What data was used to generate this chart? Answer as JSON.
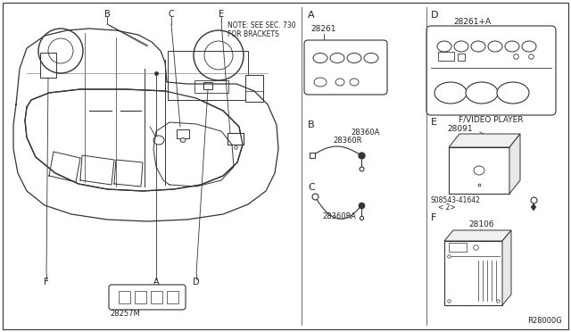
{
  "bg_color": "#ffffff",
  "line_color": "#333333",
  "text_color": "#222222",
  "fig_width": 6.4,
  "fig_height": 3.72,
  "dpi": 100,
  "part_labels": {
    "28261": "28261",
    "28261pA": "28261+A",
    "28360A": "28360A",
    "28360R": "28360R",
    "28360RA": "28360RA",
    "28257M": "28257M",
    "28091": "28091",
    "08543": "S08543-41642",
    "08543b": "< 2>",
    "28106": "28106",
    "FV": "F/VIDEO PLAYER",
    "R28000G": "R28000G",
    "note": "NOTE: SEE SEC. 730\nFOR BRACKETS"
  },
  "section_letters": {
    "A": "A",
    "B": "B",
    "C": "C",
    "D": "D",
    "E": "E",
    "F": "F"
  }
}
